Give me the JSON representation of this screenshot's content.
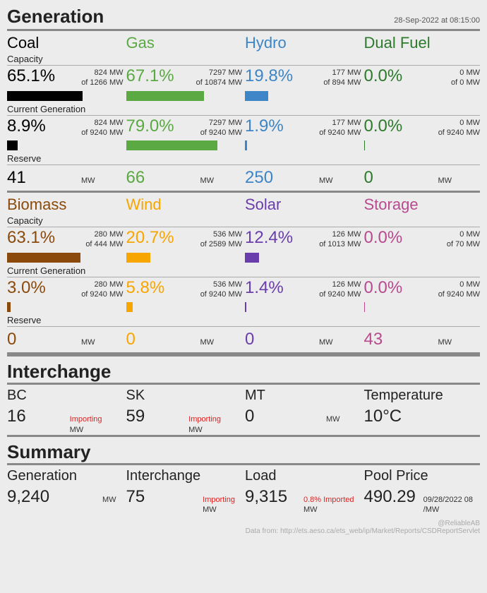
{
  "title": "Generation",
  "timestamp": "28-Sep-2022 at 08:15:00",
  "colors": {
    "coal": "#000000",
    "gas": "#5aa943",
    "hydro": "#3d85c6",
    "dualfuel": "#2d7a2d",
    "biomass": "#8b4a0b",
    "wind": "#f7a500",
    "solar": "#6a3dad",
    "storage": "#b84a8f"
  },
  "labels": {
    "capacity": "Capacity",
    "currentGen": "Current Generation",
    "reserve": "Reserve",
    "mw": "MW"
  },
  "sourcesA": [
    {
      "key": "coal",
      "name": "Coal",
      "capPct": "65.1%",
      "capVal": "824 MW",
      "capOf": "of 1266 MW",
      "capBar": 65.1,
      "genPct": "8.9%",
      "genVal": "824 MW",
      "genOf": "of 9240 MW",
      "genBar": 8.9,
      "reserve": "41"
    },
    {
      "key": "gas",
      "name": "Gas",
      "capPct": "67.1%",
      "capVal": "7297 MW",
      "capOf": "of 10874 MW",
      "capBar": 67.1,
      "genPct": "79.0%",
      "genVal": "7297 MW",
      "genOf": "of 9240 MW",
      "genBar": 79.0,
      "reserve": "66"
    },
    {
      "key": "hydro",
      "name": "Hydro",
      "capPct": "19.8%",
      "capVal": "177 MW",
      "capOf": "of 894 MW",
      "capBar": 19.8,
      "genPct": "1.9%",
      "genVal": "177 MW",
      "genOf": "of 9240 MW",
      "genBar": 1.9,
      "reserve": "250"
    },
    {
      "key": "dualfuel",
      "name": "Dual Fuel",
      "capPct": "0.0%",
      "capVal": "0 MW",
      "capOf": "of 0 MW",
      "capBar": 0,
      "genPct": "0.0%",
      "genVal": "0 MW",
      "genOf": "of 9240 MW",
      "genBar": 0,
      "reserve": "0"
    }
  ],
  "sourcesB": [
    {
      "key": "biomass",
      "name": "Biomass",
      "capPct": "63.1%",
      "capVal": "280 MW",
      "capOf": "of 444 MW",
      "capBar": 63.1,
      "genPct": "3.0%",
      "genVal": "280 MW",
      "genOf": "of 9240 MW",
      "genBar": 3.0,
      "reserve": "0"
    },
    {
      "key": "wind",
      "name": "Wind",
      "capPct": "20.7%",
      "capVal": "536 MW",
      "capOf": "of 2589 MW",
      "capBar": 20.7,
      "genPct": "5.8%",
      "genVal": "536 MW",
      "genOf": "of 9240 MW",
      "genBar": 5.8,
      "reserve": "0"
    },
    {
      "key": "solar",
      "name": "Solar",
      "capPct": "12.4%",
      "capVal": "126 MW",
      "capOf": "of 1013 MW",
      "capBar": 12.4,
      "genPct": "1.4%",
      "genVal": "126 MW",
      "genOf": "of 9240 MW",
      "genBar": 1.4,
      "reserve": "0"
    },
    {
      "key": "storage",
      "name": "Storage",
      "capPct": "0.0%",
      "capVal": "0 MW",
      "capOf": "of 70 MW",
      "capBar": 0,
      "genPct": "0.0%",
      "genVal": "0 MW",
      "genOf": "of 9240 MW",
      "genBar": 0,
      "reserve": "43"
    }
  ],
  "interchange": {
    "title": "Interchange",
    "items": [
      {
        "label": "BC",
        "val": "16",
        "unit": "MW",
        "status": "Importing"
      },
      {
        "label": "SK",
        "val": "59",
        "unit": "MW",
        "status": "Importing"
      },
      {
        "label": "MT",
        "val": "0",
        "unit": "MW",
        "status": ""
      },
      {
        "label": "Temperature",
        "val": "10°C",
        "unit": "",
        "status": ""
      }
    ]
  },
  "summary": {
    "title": "Summary",
    "items": [
      {
        "label": "Generation",
        "val": "9,240",
        "unit": "MW",
        "note": ""
      },
      {
        "label": "Interchange",
        "val": "75",
        "unit": "MW",
        "note": "Importing"
      },
      {
        "label": "Load",
        "val": "9,315",
        "unit": "MW",
        "note": "0.8% Imported"
      },
      {
        "label": "Pool Price",
        "val": "490.29",
        "unit": "09/28/2022 08\n/MW",
        "note": ""
      }
    ]
  },
  "footer": {
    "source": "Data from: http://ets.aeso.ca/ets_web/ip/Market/Reports/CSDReportServlet",
    "handle": "@ReliableAB"
  }
}
